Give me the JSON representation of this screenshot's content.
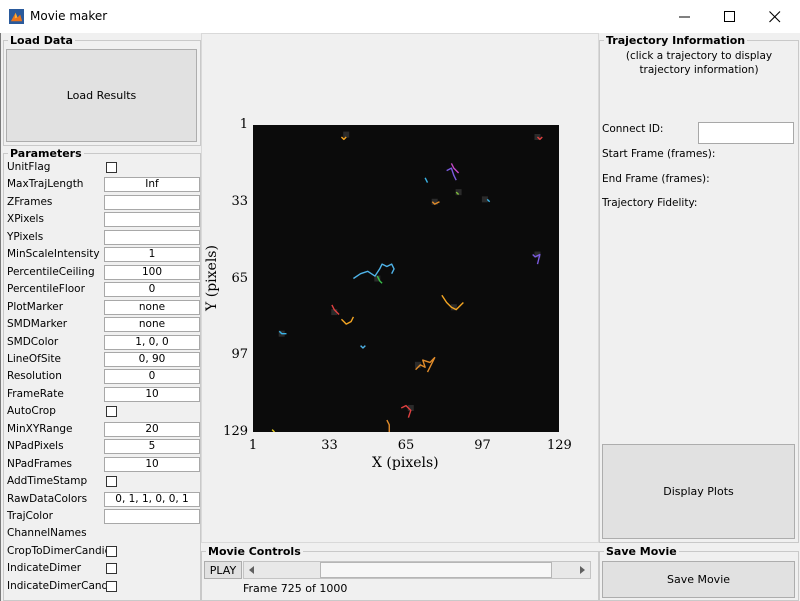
{
  "window": {
    "title": "Movie maker"
  },
  "load_data": {
    "title": "Load Data",
    "load_button": "Load Results"
  },
  "parameters": {
    "title": "Parameters",
    "items": [
      {
        "label": "UnitFlag",
        "kind": "check"
      },
      {
        "label": "MaxTrajLength",
        "kind": "field",
        "value": "Inf"
      },
      {
        "label": "ZFrames",
        "kind": "field",
        "value": ""
      },
      {
        "label": "XPixels",
        "kind": "field",
        "value": ""
      },
      {
        "label": "YPixels",
        "kind": "field",
        "value": ""
      },
      {
        "label": "MinScaleIntensity",
        "kind": "field",
        "value": "1"
      },
      {
        "label": "PercentileCeiling",
        "kind": "field",
        "value": "100"
      },
      {
        "label": "PercentileFloor",
        "kind": "field",
        "value": "0"
      },
      {
        "label": "PlotMarker",
        "kind": "field",
        "value": "none"
      },
      {
        "label": "SMDMarker",
        "kind": "field",
        "value": "none"
      },
      {
        "label": "SMDColor",
        "kind": "field",
        "value": "1, 0, 0"
      },
      {
        "label": "LineOfSite",
        "kind": "field",
        "value": "0, 90"
      },
      {
        "label": "Resolution",
        "kind": "field",
        "value": "0"
      },
      {
        "label": "FrameRate",
        "kind": "field",
        "value": "10"
      },
      {
        "label": "AutoCrop",
        "kind": "check"
      },
      {
        "label": "MinXYRange",
        "kind": "field",
        "value": "20"
      },
      {
        "label": "NPadPixels",
        "kind": "field",
        "value": "5"
      },
      {
        "label": "NPadFrames",
        "kind": "field",
        "value": "10"
      },
      {
        "label": "AddTimeStamp",
        "kind": "check"
      },
      {
        "label": "RawDataColors",
        "kind": "field",
        "value": "0, 1, 1, 0, 0, 1"
      },
      {
        "label": "TrajColor",
        "kind": "field",
        "value": ""
      },
      {
        "label": "ChannelNames",
        "kind": "none"
      },
      {
        "label": "CropToDimerCandid",
        "kind": "check"
      },
      {
        "label": "IndicateDimer",
        "kind": "check"
      },
      {
        "label": "IndicateDimerCandi",
        "kind": "check"
      }
    ]
  },
  "plot": {
    "xlabel": "X (pixels)",
    "ylabel": "Y (pixels)",
    "xticks": [
      "1",
      "33",
      "65",
      "97",
      "129"
    ],
    "yticks": [
      "1",
      "33",
      "65",
      "97",
      "129"
    ],
    "background": "#0b0b0b"
  },
  "chart_data": {
    "type": "line",
    "title": "",
    "xlabel": "X (pixels)",
    "ylabel": "Y (pixels)",
    "xlim": [
      1,
      129
    ],
    "ylim": [
      129,
      1
    ],
    "x_ticks": [
      1,
      33,
      65,
      97,
      129
    ],
    "y_ticks": [
      1,
      33,
      65,
      97,
      129
    ],
    "series": [
      {
        "color": "#4fb3e8",
        "x": [
          43,
          46,
          49,
          52,
          54,
          55,
          57,
          59,
          60,
          59
        ],
        "y": [
          65,
          63,
          62,
          64,
          61,
          59,
          60,
          59,
          61,
          63
        ]
      },
      {
        "color": "#39c24a",
        "x": [
          53,
          54,
          55
        ],
        "y": [
          64,
          66,
          67
        ]
      },
      {
        "color": "#f5a623",
        "x": [
          80,
          82,
          84,
          86,
          87,
          89
        ],
        "y": [
          72,
          75,
          77,
          78,
          77,
          75
        ]
      },
      {
        "color": "#f5a623",
        "x": [
          38,
          39,
          40,
          42,
          43
        ],
        "y": [
          82,
          83,
          84,
          83,
          81
        ]
      },
      {
        "color": "#e04040",
        "x": [
          34,
          35,
          36,
          37
        ],
        "y": [
          76,
          78,
          79,
          80
        ]
      },
      {
        "color": "#e08b2a",
        "x": [
          69,
          71,
          73,
          72,
          75,
          77,
          74
        ],
        "y": [
          103,
          101,
          102,
          99,
          100,
          98,
          104
        ]
      },
      {
        "color": "#7b5be0",
        "x": [
          82,
          84,
          85,
          86
        ],
        "y": [
          20,
          19,
          22,
          24
        ]
      },
      {
        "color": "#c948c9",
        "x": [
          84,
          85,
          87
        ],
        "y": [
          17,
          19,
          21
        ]
      },
      {
        "color": "#3bb5e8",
        "x": [
          73,
          74
        ],
        "y": [
          23,
          25
        ]
      },
      {
        "color": "#e08b2a",
        "x": [
          76,
          77,
          79
        ],
        "y": [
          33,
          34,
          33
        ]
      },
      {
        "color": "#7fbf3a",
        "x": [
          86,
          87
        ],
        "y": [
          29,
          30
        ]
      },
      {
        "color": "#3bb5e8",
        "x": [
          99,
          100
        ],
        "y": [
          32,
          33
        ]
      },
      {
        "color": "#7b5be0",
        "x": [
          118,
          119,
          121,
          120
        ],
        "y": [
          55,
          56,
          55,
          59
        ]
      },
      {
        "color": "#3bb5e8",
        "x": [
          12,
          13,
          15
        ],
        "y": [
          87,
          88,
          88
        ]
      },
      {
        "color": "#4fb3e8",
        "x": [
          46,
          47,
          48
        ],
        "y": [
          93,
          94,
          93
        ]
      },
      {
        "color": "#f5a623",
        "x": [
          38,
          39,
          40
        ],
        "y": [
          6,
          7,
          6
        ]
      },
      {
        "color": "#e04040",
        "x": [
          120,
          121,
          122
        ],
        "y": [
          6,
          7,
          6
        ]
      },
      {
        "color": "#e04040",
        "x": [
          63,
          65,
          67,
          66
        ],
        "y": [
          119,
          118,
          120,
          123
        ]
      },
      {
        "color": "#e08b2a",
        "x": [
          57,
          58,
          58
        ],
        "y": [
          124,
          126,
          129
        ]
      },
      {
        "color": "#e8d020",
        "x": [
          9,
          10
        ],
        "y": [
          128,
          129
        ]
      }
    ]
  },
  "movie_controls": {
    "title": "Movie Controls",
    "play": "PLAY",
    "frame_text": "Frame 725 of 1000",
    "progress_fraction": 0.725
  },
  "trajectory": {
    "title": "Trajectory Information",
    "hint": "(click a trajectory to display trajectory information)",
    "connect_label": "Connect ID:",
    "connect_value": "",
    "start_label": "Start Frame (frames):",
    "end_label": "End Frame (frames):",
    "fidelity_label": "Trajectory Fidelity:",
    "display_button": "Display Plots"
  },
  "save_movie": {
    "title": "Save Movie",
    "button": "Save Movie"
  }
}
